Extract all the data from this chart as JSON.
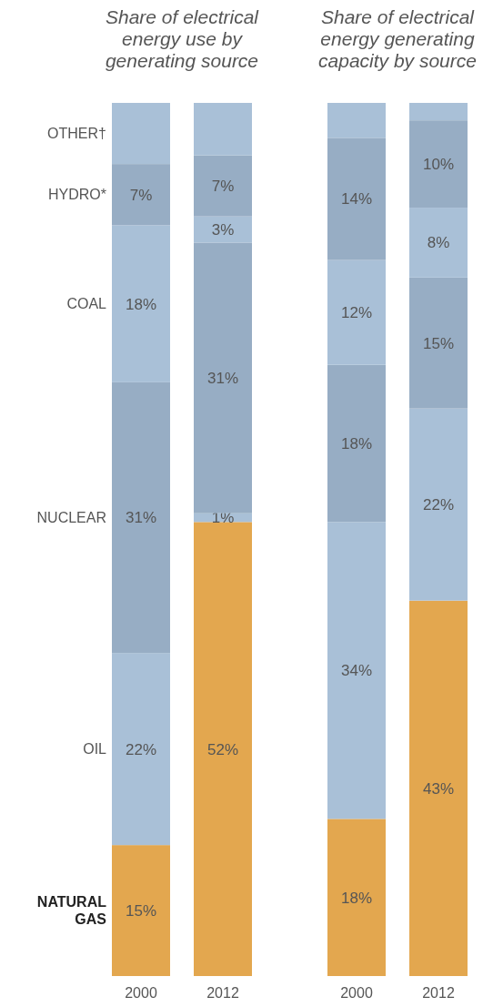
{
  "chart_data": [
    {
      "type": "bar",
      "stacked": true,
      "title": "Share of electrical energy use by generating source",
      "categories": [
        "2000",
        "2012"
      ],
      "series": [
        {
          "name": "NATURAL GAS",
          "color": "#e3a74f",
          "values": [
            15,
            52
          ],
          "value_labels": [
            "15%",
            "52%"
          ]
        },
        {
          "name": "OIL",
          "color": "#a9c0d7",
          "values": [
            22,
            1
          ],
          "value_labels": [
            "22%",
            "1%"
          ]
        },
        {
          "name": "NUCLEAR",
          "color": "#97adc4",
          "values": [
            31,
            31
          ],
          "value_labels": [
            "31%",
            "31%"
          ]
        },
        {
          "name": "COAL",
          "color": "#a9c0d7",
          "values": [
            18,
            3
          ],
          "value_labels": [
            "18%",
            "3%"
          ]
        },
        {
          "name": "HYDRO*",
          "color": "#97adc4",
          "values": [
            7,
            7
          ],
          "value_labels": [
            "7%",
            "7%"
          ]
        },
        {
          "name": "OTHER†",
          "color": "#a9c0d7",
          "values": [
            7,
            6
          ],
          "value_labels": [
            null,
            null
          ]
        }
      ]
    },
    {
      "type": "bar",
      "stacked": true,
      "title": "Share of electrical energy generating capacity by source",
      "categories": [
        "2000",
        "2012"
      ],
      "series": [
        {
          "color": "#e3a74f",
          "values": [
            18,
            43
          ],
          "value_labels": [
            "18%",
            "43%"
          ]
        },
        {
          "color": "#a9c0d7",
          "values": [
            34,
            22
          ],
          "value_labels": [
            "34%",
            "22%"
          ]
        },
        {
          "color": "#97adc4",
          "values": [
            18,
            15
          ],
          "value_labels": [
            "18%",
            "15%"
          ]
        },
        {
          "color": "#a9c0d7",
          "values": [
            12,
            8
          ],
          "value_labels": [
            "12%",
            "8%"
          ]
        },
        {
          "color": "#97adc4",
          "values": [
            14,
            10
          ],
          "value_labels": [
            "14%",
            "10%"
          ]
        },
        {
          "color": "#a9c0d7",
          "values": [
            4,
            2
          ],
          "value_labels": [
            null,
            null
          ]
        }
      ]
    }
  ]
}
